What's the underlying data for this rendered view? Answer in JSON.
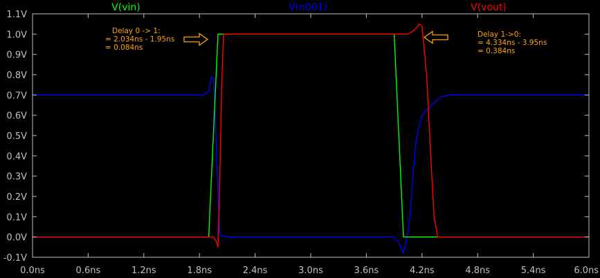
{
  "chart_data": {
    "type": "line",
    "title": "",
    "xlabel": "",
    "ylabel": "",
    "xlim": [
      0.0,
      6.0
    ],
    "ylim": [
      -0.1,
      1.1
    ],
    "grid": false,
    "legend": "top",
    "x_ticks": [
      "0.0ns",
      "0.6ns",
      "1.2ns",
      "1.8ns",
      "2.4ns",
      "3.0ns",
      "3.6ns",
      "4.2ns",
      "4.8ns",
      "5.4ns",
      "6.0ns"
    ],
    "y_ticks": [
      "1.1V",
      "1.0V",
      "0.9V",
      "0.8V",
      "0.7V",
      "0.6V",
      "0.5V",
      "0.4V",
      "0.3V",
      "0.2V",
      "0.1V",
      "0.0V",
      "-0.1V"
    ],
    "y_tick_values": [
      1.1,
      1.0,
      0.9,
      0.8,
      0.7,
      0.6,
      0.5,
      0.4,
      0.3,
      0.2,
      0.1,
      0.0,
      -0.1
    ],
    "series": [
      {
        "name": "V(vin)",
        "color": "#00ff00",
        "points": [
          [
            0.0,
            0.0
          ],
          [
            1.9,
            0.0
          ],
          [
            2.0,
            1.0
          ],
          [
            3.9,
            1.0
          ],
          [
            4.0,
            0.0
          ],
          [
            6.0,
            0.0
          ]
        ]
      },
      {
        "name": "V(n001)",
        "color": "#0000ff",
        "points": [
          [
            0.0,
            0.7
          ],
          [
            1.85,
            0.7
          ],
          [
            1.9,
            0.72
          ],
          [
            1.93,
            0.79
          ],
          [
            1.95,
            0.78
          ],
          [
            1.97,
            0.6
          ],
          [
            2.0,
            0.2
          ],
          [
            2.02,
            0.01
          ],
          [
            2.1,
            0.0
          ],
          [
            3.9,
            0.0
          ],
          [
            3.95,
            -0.03
          ],
          [
            4.0,
            -0.08
          ],
          [
            4.03,
            -0.02
          ],
          [
            4.06,
            0.05
          ],
          [
            4.1,
            0.28
          ],
          [
            4.13,
            0.45
          ],
          [
            4.16,
            0.53
          ],
          [
            4.2,
            0.6
          ],
          [
            4.3,
            0.65
          ],
          [
            4.4,
            0.69
          ],
          [
            4.5,
            0.7
          ],
          [
            6.0,
            0.7
          ]
        ]
      },
      {
        "name": "V(vout)",
        "color": "#ff0000",
        "points": [
          [
            0.0,
            0.0
          ],
          [
            1.95,
            0.0
          ],
          [
            1.98,
            -0.02
          ],
          [
            2.0,
            -0.05
          ],
          [
            2.02,
            0.3
          ],
          [
            2.04,
            0.75
          ],
          [
            2.06,
            1.0
          ],
          [
            3.95,
            1.0
          ],
          [
            4.05,
            1.0
          ],
          [
            4.12,
            1.02
          ],
          [
            4.17,
            1.05
          ],
          [
            4.2,
            1.04
          ],
          [
            4.25,
            0.8
          ],
          [
            4.3,
            0.35
          ],
          [
            4.33,
            0.1
          ],
          [
            4.37,
            0.0
          ],
          [
            6.0,
            0.0
          ]
        ]
      }
    ],
    "annotations": [
      {
        "lines": [
          "Delay 0 -> 1:",
          "= 2.034ns - 1.95ns",
          "= 0.084ns"
        ]
      },
      {
        "lines": [
          "Delay 1->0:",
          "= 4.334ns - 3.95ns",
          "= 0.384ns"
        ]
      }
    ]
  }
}
